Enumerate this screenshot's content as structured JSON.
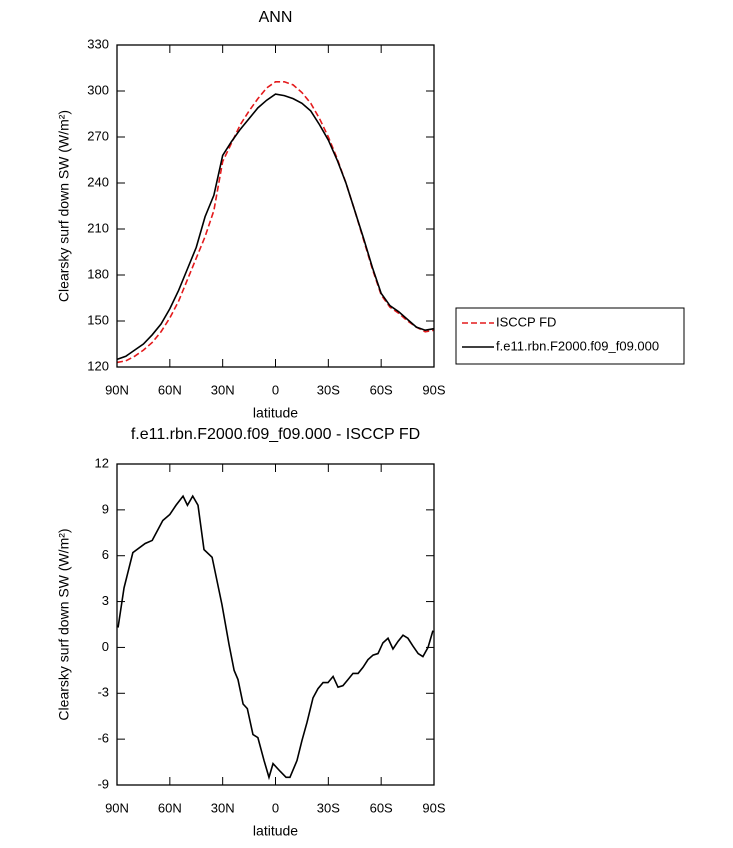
{
  "chart_data": [
    {
      "type": "line",
      "title": "ANN",
      "xlabel": "latitude",
      "ylabel": "Clearsky surf down SW (W/m²)",
      "x": [
        90,
        85,
        80,
        75,
        70,
        65,
        60,
        55,
        50,
        45,
        40,
        35,
        30,
        25,
        20,
        15,
        10,
        5,
        0,
        -5,
        -10,
        -15,
        -20,
        -25,
        -30,
        -35,
        -40,
        -45,
        -50,
        -55,
        -60,
        -65,
        -70,
        -75,
        -80,
        -85,
        -90
      ],
      "series": [
        {
          "name": "ISCCP FD",
          "color": "#e41a1c",
          "line_style": "dashed",
          "values": [
            123,
            124,
            127,
            131,
            136,
            143,
            152,
            163,
            177,
            191,
            205,
            222,
            254,
            266,
            278,
            287,
            295,
            302,
            306,
            306,
            304,
            299,
            292,
            282,
            270,
            256,
            240,
            222,
            203,
            184,
            167,
            159,
            155,
            150,
            146,
            143,
            144
          ]
        },
        {
          "name": "f.e11.rbn.F2000.f09_f09.000",
          "color": "#000000",
          "line_style": "solid",
          "values": [
            125,
            127,
            131,
            135,
            141,
            148,
            158,
            170,
            184,
            198,
            218,
            232,
            258,
            267,
            275,
            282,
            289,
            294,
            298,
            297,
            295,
            292,
            287,
            278,
            268,
            255,
            240,
            222,
            204,
            185,
            168,
            160,
            156,
            151,
            146,
            144,
            145
          ]
        }
      ],
      "xlim": [
        90,
        -90
      ],
      "ylim": [
        120,
        330
      ],
      "xticks": [
        {
          "value": 90,
          "label": "90N"
        },
        {
          "value": 60,
          "label": "60N"
        },
        {
          "value": 30,
          "label": "30N"
        },
        0,
        {
          "value": -30,
          "label": "30S"
        },
        {
          "value": -60,
          "label": "60S"
        },
        {
          "value": -90,
          "label": "90S"
        }
      ],
      "yticks": [
        120,
        150,
        180,
        210,
        240,
        270,
        300,
        330
      ],
      "legend": "right"
    },
    {
      "type": "line",
      "title": "f.e11.rbn.F2000.f09_f09.000 - ISCCP FD",
      "xlabel": "latitude",
      "ylabel": "Clearsky surf down SW (W/m²)",
      "x": [
        89.4,
        86,
        81,
        74,
        70,
        64,
        60,
        56.5,
        52.5,
        50,
        47,
        44,
        40.6,
        36,
        30.4,
        26.4,
        23.5,
        21.3,
        18.4,
        16,
        12.8,
        10,
        6.5,
        3.7,
        1.4,
        -2.6,
        -6,
        -8.2,
        -12.2,
        -15,
        -17.9,
        -21.3,
        -24.1,
        -27,
        -29.8,
        -32.7,
        -35.5,
        -38.3,
        -41.2,
        -44,
        -46.9,
        -49.7,
        -52.5,
        -55.4,
        -58.2,
        -61,
        -63.9,
        -66.7,
        -69.6,
        -72.4,
        -75.2,
        -78,
        -81,
        -83.7,
        -86.6,
        -89.4
      ],
      "series": [
        {
          "name": "f.e11.rbn.F2000.f09_f09.000 - ISCCP FD",
          "color": "#000000",
          "line_style": "solid",
          "values": [
            1.3,
            3.9,
            6.2,
            6.8,
            7.0,
            8.3,
            8.7,
            9.3,
            9.9,
            9.3,
            9.9,
            9.3,
            6.4,
            5.9,
            2.8,
            0.2,
            -1.5,
            -2.1,
            -3.7,
            -4.0,
            -5.7,
            -5.9,
            -7.4,
            -8.5,
            -7.6,
            -8.1,
            -8.5,
            -8.5,
            -7.4,
            -6.1,
            -4.9,
            -3.3,
            -2.7,
            -2.3,
            -2.3,
            -1.9,
            -2.6,
            -2.5,
            -2.1,
            -1.7,
            -1.7,
            -1.3,
            -0.8,
            -0.5,
            -0.4,
            0.3,
            0.6,
            -0.1,
            0.4,
            0.8,
            0.6,
            0.1,
            -0.4,
            -0.6,
            0.0,
            1.1
          ]
        }
      ],
      "xlim": [
        90,
        -90
      ],
      "ylim": [
        -9,
        12
      ],
      "xticks": [
        {
          "value": 90,
          "label": "90N"
        },
        {
          "value": 60,
          "label": "60N"
        },
        {
          "value": 30,
          "label": "30N"
        },
        0,
        {
          "value": -30,
          "label": "30S"
        },
        {
          "value": -60,
          "label": "60S"
        },
        {
          "value": -90,
          "label": "90S"
        }
      ],
      "yticks": [
        -9,
        -6,
        -3,
        0,
        3,
        6,
        9,
        12
      ]
    }
  ]
}
